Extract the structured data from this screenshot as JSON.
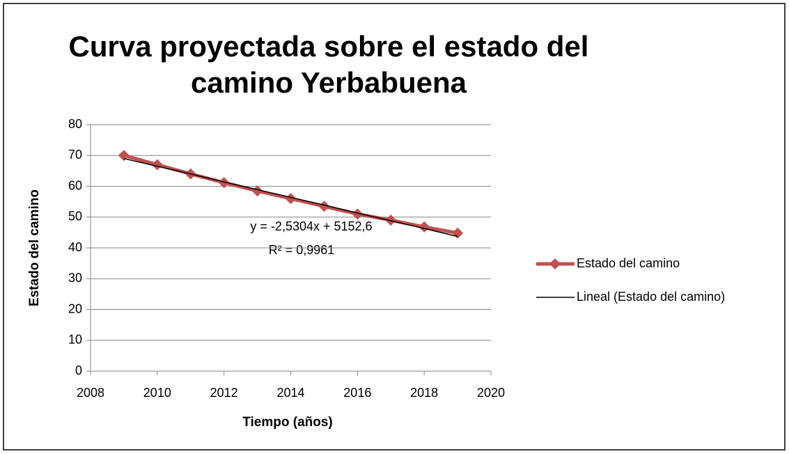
{
  "chart_data": {
    "type": "line",
    "title": [
      "Curva proyectada sobre el estado del",
      "camino Yerbabuena"
    ],
    "x_label": "Tiempo (años)",
    "y_label": "Estado del camino",
    "x": [
      2009,
      2010,
      2011,
      2012,
      2013,
      2014,
      2015,
      2016,
      2017,
      2018,
      2019
    ],
    "series": [
      {
        "name": "Estado del camino",
        "color": "#c0504d",
        "values": [
          70,
          67,
          64,
          61.2,
          58.5,
          56,
          53.5,
          51,
          49,
          46.8,
          44.8
        ]
      },
      {
        "name": "Lineal (Estado del camino)",
        "color": "#000000",
        "values": [
          69.0,
          66.5,
          64.0,
          61.4,
          58.9,
          56.4,
          53.9,
          51.3,
          48.8,
          46.3,
          43.7
        ]
      }
    ],
    "annotations": [
      "y = -2,5304x + 5152,6",
      "R² = 0,9961"
    ],
    "xlim": [
      2008,
      2020
    ],
    "xticks": [
      2008,
      2010,
      2012,
      2014,
      2016,
      2018,
      2020
    ],
    "ylim": [
      0,
      80
    ],
    "yticks": [
      0,
      10,
      20,
      30,
      40,
      50,
      60,
      70,
      80
    ],
    "grid": true,
    "legend": "right"
  }
}
